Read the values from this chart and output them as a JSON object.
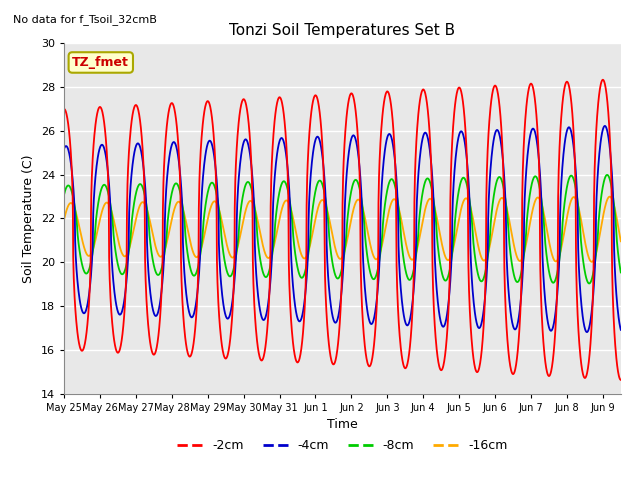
{
  "title": "Tonzi Soil Temperatures Set B",
  "subtitle": "No data for f_Tsoil_32cmB",
  "xlabel": "Time",
  "ylabel": "Soil Temperature (C)",
  "ylim": [
    14,
    30
  ],
  "yticks": [
    14,
    16,
    18,
    20,
    22,
    24,
    26,
    28,
    30
  ],
  "legend_labels": [
    "-2cm",
    "-4cm",
    "-8cm",
    "-16cm"
  ],
  "legend_colors": [
    "#ff0000",
    "#0000cc",
    "#00cc00",
    "#ffaa00"
  ],
  "annotation_text": "TZ_fmet",
  "xtick_labels": [
    "May 25",
    "May 26",
    "May 27",
    "May 28",
    "May 29",
    "May 30",
    "May 31",
    "Jun 1",
    "Jun 2",
    "Jun 3",
    "Jun 4",
    "Jun 5",
    "Jun 6",
    "Jun 7",
    "Jun 8",
    "Jun 9"
  ],
  "bg_color": "#e8e8e8",
  "fig_color": "#ffffff",
  "grid_color": "#ffffff",
  "total_days": 15.5,
  "n_points": 2000
}
